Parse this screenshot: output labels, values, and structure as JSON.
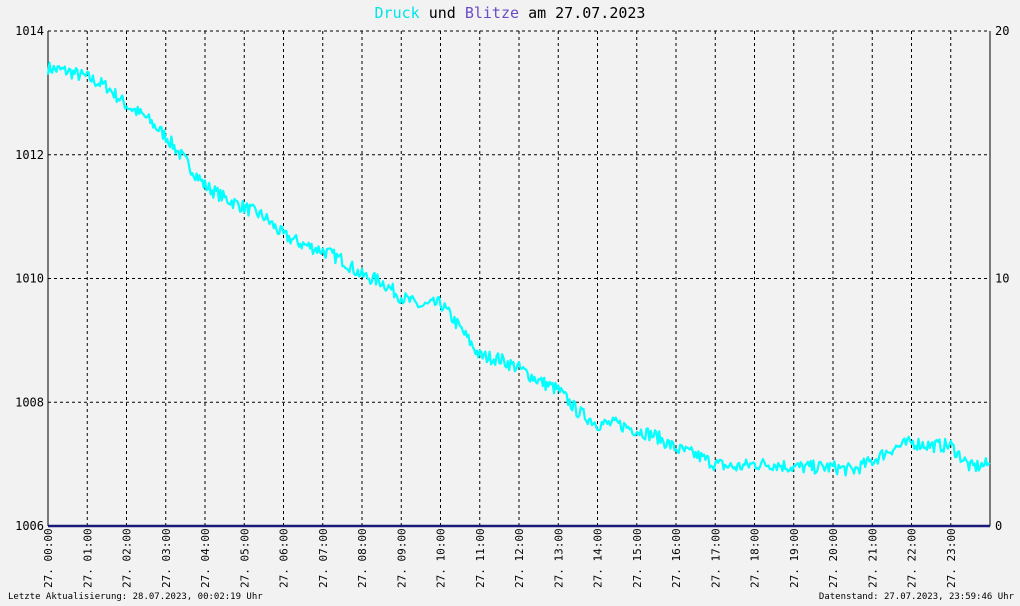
{
  "title": {
    "series1": "Druck",
    "conj": "und",
    "series2": "Blitze",
    "date_prefix": "am",
    "date": "27.07.2023"
  },
  "footer": {
    "left": "Letzte Aktualisierung: 28.07.2023, 00:02:19 Uhr",
    "right": "Datenstand: 27.07.2023, 23:59:46 Uhr"
  },
  "colors": {
    "druck": "#00ffff",
    "blitze": "#1a1a7a",
    "grid": "#000000",
    "background": "#f2f2f2",
    "title_druck": "#00e5e5",
    "title_blitze": "#6b4cc8"
  },
  "chart_data": {
    "type": "line",
    "x_unit": "hour of day",
    "xlim": [
      0,
      24
    ],
    "ylim_left": [
      1006,
      1014
    ],
    "yticks_left": [
      "1006",
      "1008",
      "1010",
      "1012",
      "1014"
    ],
    "ylim_right": [
      0,
      20
    ],
    "yticks_right": [
      "0",
      "10",
      "20"
    ],
    "xticks": [
      "27. 00:00",
      "27. 01:00",
      "27. 02:00",
      "27. 03:00",
      "27. 04:00",
      "27. 05:00",
      "27. 06:00",
      "27. 07:00",
      "27. 08:00",
      "27. 09:00",
      "27. 10:00",
      "27. 11:00",
      "27. 12:00",
      "27. 13:00",
      "27. 14:00",
      "27. 15:00",
      "27. 16:00",
      "27. 17:00",
      "27. 18:00",
      "27. 19:00",
      "27. 20:00",
      "27. 21:00",
      "27. 22:00",
      "27. 23:00"
    ],
    "grid": true,
    "series": [
      {
        "name": "Druck",
        "axis": "left",
        "x": [
          0,
          0.5,
          1,
          1.5,
          2,
          2.5,
          3,
          3.5,
          4,
          4.5,
          5,
          5.5,
          6,
          6.5,
          7,
          7.5,
          8,
          8.5,
          9,
          9.5,
          10,
          10.5,
          11,
          11.5,
          12,
          12.5,
          13,
          13.5,
          14,
          14.5,
          15,
          15.5,
          16,
          16.5,
          17,
          17.5,
          18,
          18.5,
          19,
          19.5,
          20,
          20.5,
          21,
          21.5,
          22,
          22.5,
          23,
          23.5,
          24
        ],
        "values": [
          1013.4,
          1013.35,
          1013.25,
          1013.1,
          1012.8,
          1012.6,
          1012.3,
          1011.9,
          1011.5,
          1011.3,
          1011.15,
          1011.0,
          1010.7,
          1010.55,
          1010.45,
          1010.3,
          1010.05,
          1009.95,
          1009.7,
          1009.55,
          1009.6,
          1009.2,
          1008.75,
          1008.7,
          1008.55,
          1008.35,
          1008.2,
          1007.85,
          1007.65,
          1007.65,
          1007.55,
          1007.45,
          1007.25,
          1007.15,
          1007.0,
          1006.95,
          1007.0,
          1007.0,
          1006.95,
          1006.95,
          1006.95,
          1006.9,
          1007.05,
          1007.25,
          1007.35,
          1007.3,
          1007.3,
          1006.95,
          1007.0
        ]
      },
      {
        "name": "Blitze",
        "axis": "right",
        "x": [
          0,
          24
        ],
        "values": [
          0,
          0
        ]
      }
    ]
  }
}
